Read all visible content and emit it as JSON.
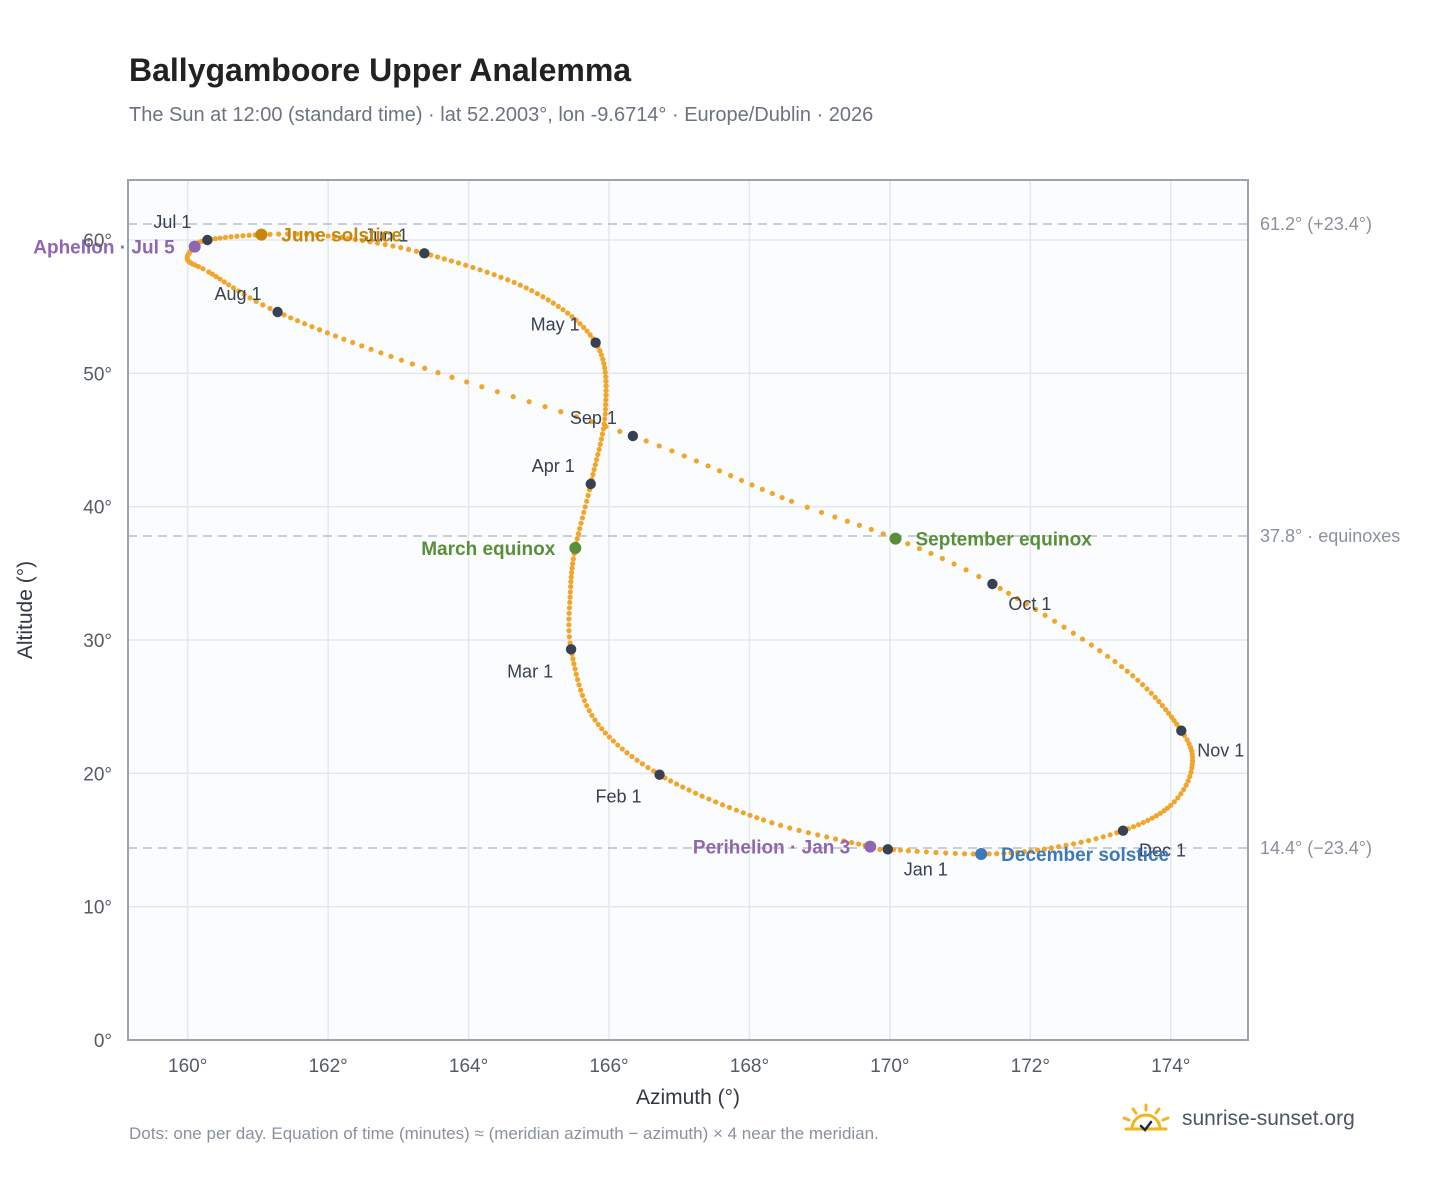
{
  "header": {
    "title": "Ballygamboore Upper Analemma",
    "subtitle": "The Sun at 12:00 (standard time) · lat 52.2003°, lon -9.6714° · Europe/Dublin · 2026"
  },
  "footer": {
    "note": "Dots: one per day. Equation of time (minutes) ≈ (meridian azimuth − azimuth) × 4 near the meridian.",
    "brand": "sunrise-sunset.org"
  },
  "colors": {
    "path": "#f2a52b",
    "month_marker": "#374151",
    "solstice_june": "#c8860b",
    "solstice_december": "#3d78b8",
    "equinox": "#5a8f3a",
    "apsis": "#8e66b2",
    "reference_line": "#b9c0c9",
    "plot_background": "#fafcfe",
    "grid": "#e4e8ee"
  },
  "chart_data": {
    "type": "scatter",
    "xlabel": "Azimuth (°)",
    "ylabel": "Altitude (°)",
    "xlim": [
      159.15,
      175.1
    ],
    "ylim": [
      0,
      64.5
    ],
    "x_ticks": [
      160,
      162,
      164,
      166,
      168,
      170,
      172,
      174
    ],
    "x_tick_labels": [
      "160°",
      "162°",
      "164°",
      "166°",
      "168°",
      "170°",
      "172°",
      "174°"
    ],
    "y_ticks": [
      0,
      10,
      20,
      30,
      40,
      50,
      60
    ],
    "y_tick_labels": [
      "0°",
      "10°",
      "20°",
      "30°",
      "40°",
      "50°",
      "60°"
    ],
    "grid": true,
    "reference_lines": [
      {
        "y": 61.2,
        "label": "61.2° (+23.4°)"
      },
      {
        "y": 37.8,
        "label": "37.8° · equinoxes"
      },
      {
        "y": 14.4,
        "label": "14.4° (−23.4°)"
      }
    ],
    "month_markers": [
      {
        "label": "Jan 1",
        "x": 169.97,
        "y": 14.3,
        "pos": "below-right"
      },
      {
        "label": "Feb 1",
        "x": 166.72,
        "y": 19.9,
        "pos": "below-left"
      },
      {
        "label": "Mar 1",
        "x": 165.46,
        "y": 29.3,
        "pos": "below-left"
      },
      {
        "label": "Apr 1",
        "x": 165.74,
        "y": 41.7,
        "pos": "above-left"
      },
      {
        "label": "May 1",
        "x": 165.81,
        "y": 52.3,
        "pos": "above-left"
      },
      {
        "label": "Jun 1",
        "x": 163.37,
        "y": 59.0,
        "pos": "above-left"
      },
      {
        "label": "Jul 1",
        "x": 160.28,
        "y": 60.0,
        "pos": "above-left"
      },
      {
        "label": "Aug 1",
        "x": 161.28,
        "y": 54.6,
        "pos": "above-left"
      },
      {
        "label": "Sep 1",
        "x": 166.34,
        "y": 45.3,
        "pos": "above-left"
      },
      {
        "label": "Oct 1",
        "x": 171.46,
        "y": 34.2,
        "pos": "below-right"
      },
      {
        "label": "Nov 1",
        "x": 174.15,
        "y": 23.2,
        "pos": "below-right"
      },
      {
        "label": "Dec 1",
        "x": 173.32,
        "y": 15.7,
        "pos": "below-right"
      }
    ],
    "events": [
      {
        "label": "June solstice",
        "x": 161.05,
        "y": 60.4,
        "color": "#c8860b",
        "side": "right"
      },
      {
        "label": "December solstice",
        "x": 171.3,
        "y": 13.95,
        "color": "#3d78b8",
        "side": "right"
      },
      {
        "label": "March equinox",
        "x": 165.52,
        "y": 36.9,
        "color": "#5a8f3a",
        "side": "left"
      },
      {
        "label": "September equinox",
        "x": 170.08,
        "y": 37.6,
        "color": "#5a8f3a",
        "side": "right"
      },
      {
        "label": "Aphelion · Jul 5",
        "x": 160.1,
        "y": 59.5,
        "color": "#8e66b2",
        "side": "left"
      },
      {
        "label": "Perihelion · Jan 3",
        "x": 169.72,
        "y": 14.5,
        "color": "#8e66b2",
        "side": "left"
      }
    ],
    "path_anchors": [
      {
        "day": 1,
        "x": 169.97,
        "y": 14.3
      },
      {
        "day": 3,
        "x": 169.72,
        "y": 14.5
      },
      {
        "day": 16,
        "x": 168.2,
        "y": 16.5
      },
      {
        "day": 32,
        "x": 166.72,
        "y": 19.9
      },
      {
        "day": 46,
        "x": 165.8,
        "y": 24.0
      },
      {
        "day": 60,
        "x": 165.46,
        "y": 29.3
      },
      {
        "day": 70,
        "x": 165.45,
        "y": 33.6
      },
      {
        "day": 79,
        "x": 165.52,
        "y": 36.9
      },
      {
        "day": 91,
        "x": 165.74,
        "y": 41.7
      },
      {
        "day": 106,
        "x": 165.95,
        "y": 47.3
      },
      {
        "day": 121,
        "x": 165.81,
        "y": 52.3
      },
      {
        "day": 136,
        "x": 164.9,
        "y": 56.2
      },
      {
        "day": 152,
        "x": 163.37,
        "y": 59.0
      },
      {
        "day": 165,
        "x": 162.0,
        "y": 60.3
      },
      {
        "day": 172,
        "x": 161.05,
        "y": 60.4
      },
      {
        "day": 182,
        "x": 160.28,
        "y": 60.0
      },
      {
        "day": 186,
        "x": 160.1,
        "y": 59.5
      },
      {
        "day": 193,
        "x": 160.0,
        "y": 58.5
      },
      {
        "day": 200,
        "x": 160.3,
        "y": 57.6
      },
      {
        "day": 213,
        "x": 161.28,
        "y": 54.6
      },
      {
        "day": 229,
        "x": 163.2,
        "y": 50.7
      },
      {
        "day": 244,
        "x": 166.34,
        "y": 45.3
      },
      {
        "day": 258,
        "x": 168.6,
        "y": 40.4
      },
      {
        "day": 266,
        "x": 170.08,
        "y": 37.6
      },
      {
        "day": 274,
        "x": 171.46,
        "y": 34.2
      },
      {
        "day": 289,
        "x": 173.3,
        "y": 28.0
      },
      {
        "day": 305,
        "x": 174.15,
        "y": 23.2
      },
      {
        "day": 315,
        "x": 174.3,
        "y": 20.4
      },
      {
        "day": 324,
        "x": 174.0,
        "y": 17.6
      },
      {
        "day": 335,
        "x": 173.32,
        "y": 15.7
      },
      {
        "day": 345,
        "x": 172.3,
        "y": 14.4
      },
      {
        "day": 355,
        "x": 171.3,
        "y": 13.95
      },
      {
        "day": 366,
        "x": 169.97,
        "y": 14.3
      }
    ]
  }
}
